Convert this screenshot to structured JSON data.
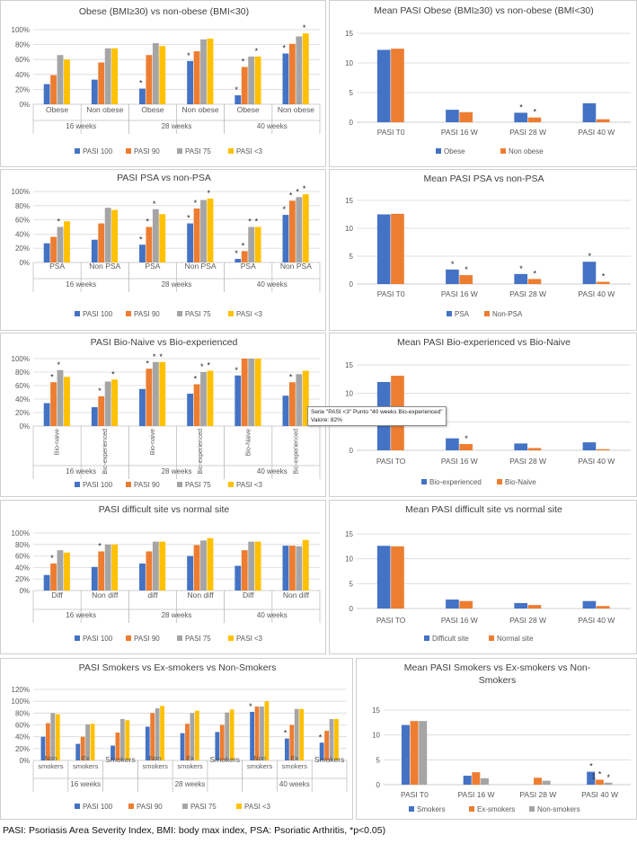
{
  "colors": {
    "pasi100": "#4472C4",
    "pasi90": "#ED7D31",
    "pasi75": "#A5A5A5",
    "pasi3": "#FFC000",
    "blue": "#4472C4",
    "orange": "#ED7D31",
    "gray": "#A5A5A5",
    "grid": "#D9D9D9",
    "text": "#595959"
  },
  "footer": "PASI: Psoriasis Area Severity Index, BMI: body max index, PSA: Psoriatic Arthritis, *p<0.05)",
  "tooltip": {
    "line1": "Serie \"PASI <3\" Punto \"40 weeks Bio-experienced\"",
    "line2": "Valore: 82%"
  },
  "chart_data": [
    {
      "id": "obese-pct",
      "type": "bar",
      "title": "Obese (BMI≥30) vs non-obese (BMI<30)",
      "yticks": [
        "0%",
        "20%",
        "40%",
        "60%",
        "80%",
        "100%"
      ],
      "ylim": [
        0,
        100
      ],
      "series": [
        {
          "name": "PASI 100",
          "values": [
            27,
            33,
            21,
            58,
            12,
            68
          ]
        },
        {
          "name": "PASI 90",
          "values": [
            39,
            56,
            66,
            71,
            50,
            81
          ]
        },
        {
          "name": "PASI 75",
          "values": [
            66,
            75,
            82,
            87,
            64,
            91
          ]
        },
        {
          "name": "PASI <3",
          "values": [
            60,
            75,
            78,
            88,
            64,
            95
          ]
        }
      ],
      "groups": [
        {
          "label": "16 weeks",
          "categories": [
            "Obese",
            "Non obese"
          ]
        },
        {
          "label": "28 weeks",
          "categories": [
            "Obese",
            "Non obese"
          ]
        },
        {
          "label": "40 weeks",
          "categories": [
            "Obese",
            "Non obese"
          ]
        }
      ],
      "stars": [
        [
          2,
          0
        ],
        [
          3,
          0
        ],
        [
          4,
          0
        ],
        [
          4,
          1
        ],
        [
          4,
          3
        ],
        [
          5,
          0
        ],
        [
          5,
          3
        ]
      ],
      "legend": [
        "PASI 100",
        "PASI 90",
        "PASI 75",
        "PASI <3"
      ]
    },
    {
      "id": "obese-mean",
      "type": "bar",
      "title": "Mean PASI Obese (BMI≥30) vs non-obese (BMI<30)",
      "yticks": [
        "0",
        "5",
        "10",
        "15"
      ],
      "ylim": [
        0,
        15
      ],
      "categories": [
        "PASI T0",
        "PASI 16 W",
        "PASI 28 W",
        "PASI 40 W"
      ],
      "series": [
        {
          "name": "Obese",
          "values": [
            12.2,
            2.1,
            1.6,
            3.2
          ]
        },
        {
          "name": "Non obese",
          "values": [
            12.4,
            1.7,
            0.8,
            0.5
          ]
        }
      ],
      "stars": [
        [
          2,
          0
        ],
        [
          2,
          1
        ]
      ],
      "legend": [
        "Obese",
        "Non obese"
      ]
    },
    {
      "id": "psa-pct",
      "type": "bar",
      "title": "PASI PSA vs non-PSA",
      "yticks": [
        "0%",
        "20%",
        "40%",
        "60%",
        "80%",
        "100%"
      ],
      "ylim": [
        0,
        100
      ],
      "series": [
        {
          "name": "PASI 100",
          "values": [
            27,
            32,
            25,
            55,
            5,
            67
          ]
        },
        {
          "name": "PASI 90",
          "values": [
            36,
            55,
            50,
            76,
            16,
            87
          ]
        },
        {
          "name": "PASI 75",
          "values": [
            50,
            77,
            75,
            88,
            50,
            92
          ]
        },
        {
          "name": "PASI <3",
          "values": [
            58,
            74,
            68,
            90,
            50,
            96
          ]
        }
      ],
      "groups": [
        {
          "label": "16 weeks",
          "categories": [
            "PSA",
            "Non PSA"
          ]
        },
        {
          "label": "28 weeks",
          "categories": [
            "PSA",
            "Non PSA"
          ]
        },
        {
          "label": "40 weeks",
          "categories": [
            "PSA",
            "Non PSA"
          ]
        }
      ],
      "stars": [
        [
          0,
          2
        ],
        [
          2,
          0
        ],
        [
          2,
          1
        ],
        [
          2,
          2
        ],
        [
          3,
          0
        ],
        [
          3,
          1
        ],
        [
          3,
          3
        ],
        [
          4,
          0
        ],
        [
          4,
          1
        ],
        [
          4,
          2
        ],
        [
          4,
          3
        ],
        [
          5,
          0
        ],
        [
          5,
          1
        ],
        [
          5,
          2
        ],
        [
          5,
          3
        ]
      ],
      "legend": [
        "PASI 100",
        "PASI 90",
        "PASI 75",
        "PASI <3"
      ]
    },
    {
      "id": "psa-mean",
      "type": "bar",
      "title": "Mean PASI PSA vs non-PSA",
      "yticks": [
        "0",
        "5",
        "10",
        "15"
      ],
      "ylim": [
        0,
        15
      ],
      "categories": [
        "PASI T0",
        "PASI 16 W",
        "PASI 28 W",
        "PASI 40 W"
      ],
      "series": [
        {
          "name": "PSA",
          "values": [
            12.5,
            2.6,
            1.8,
            4.0
          ]
        },
        {
          "name": "Non-PSA",
          "values": [
            12.6,
            1.6,
            0.9,
            0.4
          ]
        }
      ],
      "stars": [
        [
          1,
          0
        ],
        [
          1,
          1
        ],
        [
          2,
          0
        ],
        [
          2,
          1
        ],
        [
          3,
          0
        ],
        [
          3,
          1
        ]
      ],
      "legend": [
        "PSA",
        "Non-PSA"
      ]
    },
    {
      "id": "bio-pct",
      "type": "bar",
      "title": "PASI Bio-Naive vs Bio-experienced",
      "yticks": [
        "0%",
        "20%",
        "40%",
        "60%",
        "80%",
        "100%"
      ],
      "ylim": [
        0,
        100
      ],
      "series": [
        {
          "name": "PASI 100",
          "values": [
            34,
            28,
            55,
            48,
            75,
            45
          ]
        },
        {
          "name": "PASI 90",
          "values": [
            65,
            44,
            85,
            62,
            100,
            65
          ]
        },
        {
          "name": "PASI 75",
          "values": [
            83,
            66,
            95,
            80,
            100,
            77
          ]
        },
        {
          "name": "PASI <3",
          "values": [
            73,
            69,
            95,
            82,
            100,
            82
          ]
        }
      ],
      "groups": [
        {
          "label": "16 weeks",
          "categories": [
            "Bio-naive",
            "Bio-experienced"
          ]
        },
        {
          "label": "28 weeks",
          "categories": [
            "Bio-naive",
            "Bio-experienced"
          ]
        },
        {
          "label": "40 weeks",
          "categories": [
            "Bio-Naive",
            "Bio-experienced"
          ]
        }
      ],
      "stars": [
        [
          0,
          1
        ],
        [
          0,
          2
        ],
        [
          1,
          1
        ],
        [
          1,
          3
        ],
        [
          2,
          1
        ],
        [
          2,
          2
        ],
        [
          2,
          3
        ],
        [
          3,
          1
        ],
        [
          3,
          2
        ],
        [
          3,
          3
        ],
        [
          4,
          0
        ],
        [
          5,
          1
        ]
      ],
      "rotated": true,
      "legend": [
        "PASI 100",
        "PASI 90",
        "PASI 75",
        "PASI <3"
      ]
    },
    {
      "id": "bio-mean",
      "type": "bar",
      "title": "Mean PASI Bio-experienced vs Bio-Naive",
      "yticks": [
        "0",
        "5",
        "10",
        "15"
      ],
      "ylim": [
        0,
        15
      ],
      "categories": [
        "PASI TO",
        "PASI 16 W",
        "PASI 28 W",
        "PASI 40 W"
      ],
      "series": [
        {
          "name": "Bio-experienced",
          "values": [
            12.0,
            2.1,
            1.2,
            1.4
          ]
        },
        {
          "name": "Bio-Naive",
          "values": [
            13.1,
            1.1,
            0.4,
            0.2
          ]
        }
      ],
      "stars": [
        [
          1,
          1
        ]
      ],
      "legend": [
        "Bio-experienced",
        "Bio-Naive"
      ]
    },
    {
      "id": "site-pct",
      "type": "bar",
      "title": "PASI difficult site vs normal site",
      "yticks": [
        "0%",
        "20%",
        "40%",
        "60%",
        "80%",
        "100%"
      ],
      "ylim": [
        0,
        100
      ],
      "series": [
        {
          "name": "PASI 100",
          "values": [
            27,
            41,
            47,
            60,
            43,
            78
          ]
        },
        {
          "name": "PASI 90",
          "values": [
            47,
            68,
            68,
            79,
            70,
            78
          ]
        },
        {
          "name": "PASI 75",
          "values": [
            70,
            80,
            85,
            87,
            85,
            77
          ]
        },
        {
          "name": "PASI <3",
          "values": [
            66,
            80,
            85,
            91,
            85,
            88
          ]
        }
      ],
      "groups": [
        {
          "label": "16 weeks",
          "categories": [
            "Diff",
            "Non diff"
          ]
        },
        {
          "label": "28 weeks",
          "categories": [
            "diff",
            "Non diff"
          ]
        },
        {
          "label": "40 weeks",
          "categories": [
            "Diff",
            "Non diff"
          ]
        }
      ],
      "stars": [
        [
          0,
          1
        ],
        [
          1,
          1
        ]
      ],
      "legend": [
        "PASI 100",
        "PASI 90",
        "PASI 75",
        "PASI <3"
      ]
    },
    {
      "id": "site-mean",
      "type": "bar",
      "title": "Mean PASI difficult site vs normal site",
      "yticks": [
        "0",
        "5",
        "10",
        "15"
      ],
      "ylim": [
        0,
        15
      ],
      "categories": [
        "PASI TO",
        "PASI 16 W",
        "PASI 28 W",
        "PASI 40 W"
      ],
      "series": [
        {
          "name": "Difficult site",
          "values": [
            12.6,
            1.8,
            1.1,
            1.5
          ]
        },
        {
          "name": "Normal site",
          "values": [
            12.5,
            1.5,
            0.7,
            0.5
          ]
        }
      ],
      "stars": [],
      "legend": [
        "Difficult site",
        "Normal site"
      ]
    },
    {
      "id": "smoke-pct",
      "type": "bar",
      "title": "PASI Smokers vs Ex-smokers vs Non-Smokers",
      "yticks": [
        "0%",
        "20%",
        "40%",
        "60%",
        "80%",
        "100%",
        "120%"
      ],
      "ylim": [
        0,
        120
      ],
      "series": [
        {
          "name": "PASI 100",
          "values": [
            40,
            28,
            25,
            57,
            46,
            48,
            82,
            37,
            30
          ]
        },
        {
          "name": "PASI 90",
          "values": [
            63,
            40,
            47,
            80,
            62,
            60,
            91,
            60,
            50
          ]
        },
        {
          "name": "PASI 75",
          "values": [
            80,
            61,
            70,
            88,
            80,
            81,
            91,
            87,
            70
          ]
        },
        {
          "name": "PASI <3",
          "values": [
            78,
            62,
            68,
            92,
            84,
            86,
            100,
            87,
            70
          ]
        }
      ],
      "groups": [
        {
          "label": "16 weeks",
          "categories": [
            "Non\nsmokers",
            "Ex\nsmokers",
            "Smokers"
          ]
        },
        {
          "label": "28 weeks",
          "categories": [
            "Non\nsmokers",
            "Ex\nsmokers",
            "Smokers"
          ]
        },
        {
          "label": "40 weeks",
          "categories": [
            "Non\nsmokers",
            "Ex\nsmokers",
            "Smokers"
          ]
        }
      ],
      "stars": [
        [
          6,
          0
        ],
        [
          7,
          0
        ],
        [
          8,
          0
        ]
      ],
      "legend": [
        "PASI 100",
        "PASI 90",
        "PASI 75",
        "PASI <3"
      ]
    },
    {
      "id": "smoke-mean",
      "type": "bar",
      "title": "Mean PASI Smokers vs Ex-smokers vs Non-\nSmokers",
      "yticks": [
        "0",
        "5",
        "10",
        "15"
      ],
      "ylim": [
        0,
        15
      ],
      "categories": [
        "PASI T0",
        "PASI 16 W",
        "PASI 28 W",
        "PASI 40 W"
      ],
      "series": [
        {
          "name": "Smokers",
          "values": [
            12.0,
            1.8,
            0,
            2.6
          ]
        },
        {
          "name": "Ex-smokers",
          "values": [
            12.8,
            2.5,
            1.4,
            1.0
          ]
        },
        {
          "name": "Non-smokers",
          "values": [
            12.8,
            1.3,
            0.8,
            0.4
          ]
        }
      ],
      "stars": [
        [
          3,
          0
        ],
        [
          3,
          1
        ],
        [
          3,
          2
        ]
      ],
      "extra_label": "1",
      "legend": [
        "Smokers",
        "Ex-smokers",
        "Non-smokers"
      ]
    }
  ]
}
